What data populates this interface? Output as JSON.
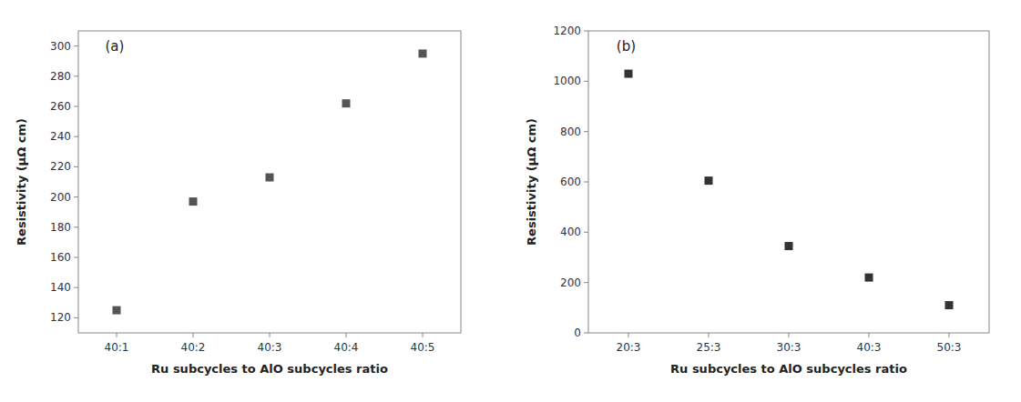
{
  "chart_data": [
    {
      "type": "scatter",
      "categories": [
        "40:1",
        "40:2",
        "40:3",
        "40:4",
        "40:5"
      ],
      "values": [
        125,
        197,
        213,
        262,
        295
      ],
      "x_label": "Ru subcycles to AlO subcycles ratio",
      "y_label": "Resistivity (μΩ cm)",
      "ylim": [
        110,
        310
      ],
      "yticks": [
        120,
        140,
        160,
        180,
        200,
        220,
        240,
        260,
        280,
        300
      ],
      "annotations": [
        "(a)"
      ],
      "color": "#555555",
      "marker": "square",
      "grid": false
    },
    {
      "type": "scatter",
      "categories": [
        "20:3",
        "25:3",
        "30:3",
        "40:3",
        "50:3"
      ],
      "values": [
        1030,
        605,
        345,
        220,
        110
      ],
      "x_label": "Ru subcycles to AlO subcycles ratio",
      "y_label": "Resistivity (μΩ cm)",
      "ylim": [
        0,
        1200
      ],
      "yticks": [
        0,
        200,
        400,
        600,
        800,
        1000,
        1200
      ],
      "annotations": [
        "(b)"
      ],
      "color": "#333333",
      "marker": "square",
      "grid": false
    }
  ]
}
